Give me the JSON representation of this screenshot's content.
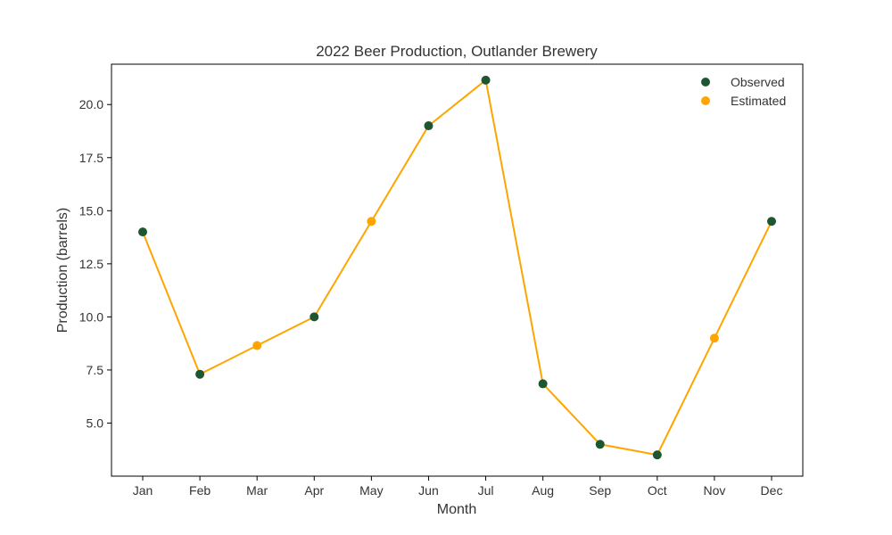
{
  "chart_data": {
    "type": "line",
    "title": "2022 Beer Production, Outlander Brewery",
    "xlabel": "Month",
    "ylabel": "Production (barrels)",
    "categories": [
      "Jan",
      "Feb",
      "Mar",
      "Apr",
      "May",
      "Jun",
      "Jul",
      "Aug",
      "Sep",
      "Oct",
      "Nov",
      "Dec"
    ],
    "values": [
      14.0,
      7.3,
      8.65,
      10.0,
      14.5,
      19.0,
      21.15,
      6.85,
      4.0,
      3.5,
      9.0,
      14.5
    ],
    "point_types": [
      "Observed",
      "Observed",
      "Estimated",
      "Observed",
      "Estimated",
      "Observed",
      "Observed",
      "Observed",
      "Observed",
      "Observed",
      "Estimated",
      "Observed"
    ],
    "ylim": [
      2.5,
      21.9
    ],
    "yticks": [
      "5.0",
      "7.5",
      "10.0",
      "12.5",
      "15.0",
      "17.5",
      "20.0"
    ],
    "grid": false,
    "legend": {
      "placement": "top-right",
      "entries": [
        {
          "label": "Observed",
          "color": "#1e5631"
        },
        {
          "label": "Estimated",
          "color": "#ffa500"
        }
      ]
    },
    "line_color": "#ffa500"
  }
}
